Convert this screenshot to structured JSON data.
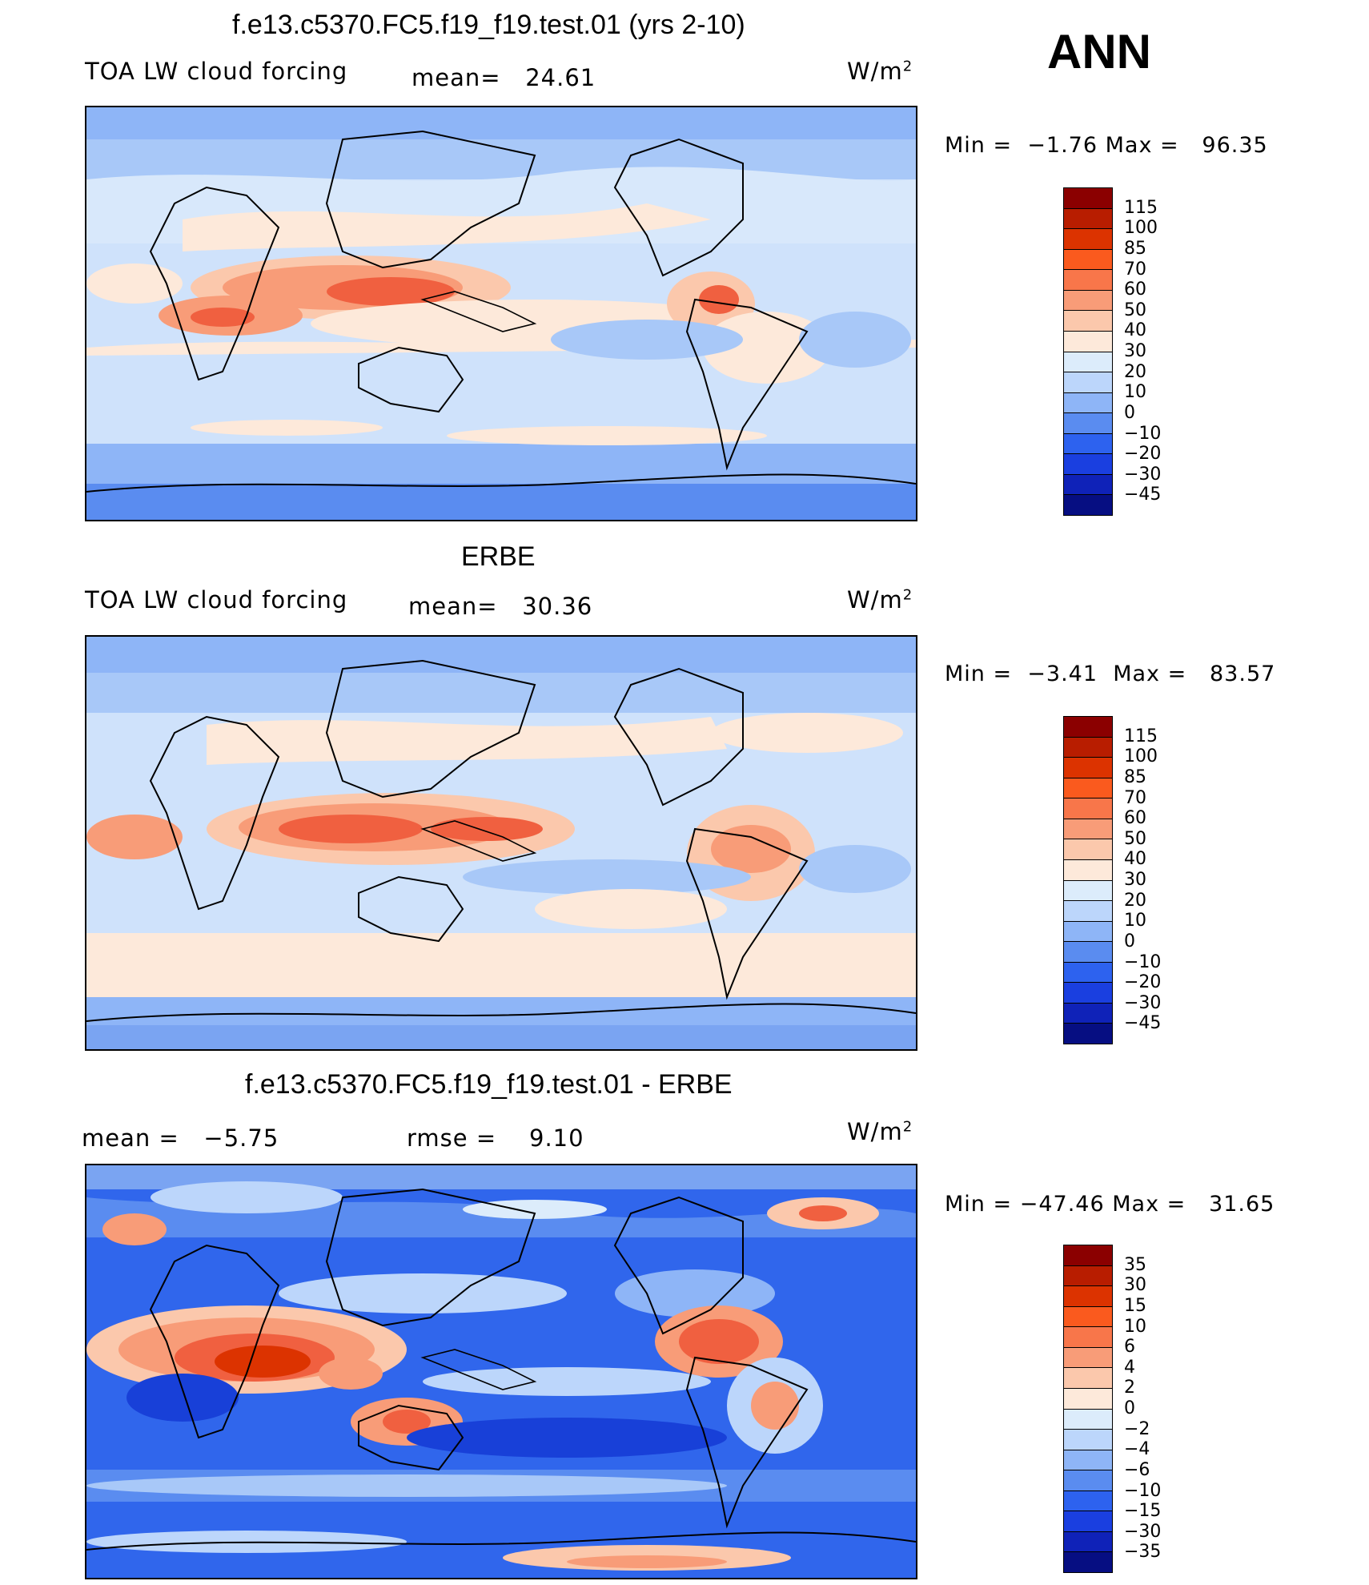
{
  "annotation": "ANN",
  "units_label": "W/m",
  "units_sup": "2",
  "panels": [
    {
      "title": "f.e13.c5370.FC5.f19_f19.test.01 (yrs 2-10)",
      "variable": "TOA LW cloud forcing",
      "stat1_label": "mean=",
      "stat1_value": "24.61",
      "stat2_label": "",
      "stat2_value": "",
      "min_label": "Min =",
      "min_value": "−1.76",
      "max_label": "Max =",
      "max_value": "96.35",
      "levels": [
        "115",
        "100",
        "85",
        "70",
        "60",
        "50",
        "40",
        "30",
        "20",
        "10",
        "0",
        "−10",
        "−20",
        "−30",
        "−45"
      ]
    },
    {
      "title": "ERBE",
      "variable": "TOA LW cloud forcing",
      "stat1_label": "mean=",
      "stat1_value": "30.36",
      "stat2_label": "",
      "stat2_value": "",
      "min_label": "Min =",
      "min_value": "−3.41",
      "max_label": "Max =",
      "max_value": "83.57",
      "levels": [
        "115",
        "100",
        "85",
        "70",
        "60",
        "50",
        "40",
        "30",
        "20",
        "10",
        "0",
        "−10",
        "−20",
        "−30",
        "−45"
      ]
    },
    {
      "title": "f.e13.c5370.FC5.f19_f19.test.01 - ERBE",
      "variable": "",
      "stat1_label": "mean =",
      "stat1_value": "−5.75",
      "stat2_label": "rmse =",
      "stat2_value": "9.10",
      "min_label": "Min =",
      "min_value": "−47.46",
      "max_label": "Max =",
      "max_value": "31.65",
      "levels": [
        "35",
        "30",
        "15",
        "10",
        "6",
        "4",
        "2",
        "0",
        "−2",
        "−4",
        "−6",
        "−10",
        "−15",
        "−30",
        "−35"
      ]
    }
  ],
  "colorbar_colors": [
    "#8b0000",
    "#b81d00",
    "#dc3300",
    "#fa5a1e",
    "#f8764a",
    "#f89c78",
    "#fbc8ac",
    "#fde9da",
    "#dcecfb",
    "#bcd6fb",
    "#8eb5f7",
    "#5a8cf0",
    "#2d62ef",
    "#1a3fe0",
    "#0f22b8",
    "#060e82"
  ],
  "map_colors": {
    "band_polar_n": "#9bbdf6",
    "band_mid": "#d4e6fb",
    "band_tropic": "#dcecfb",
    "band_south": "#fde9da",
    "band_antarctic": "#5a8cf0",
    "warm1": "#fbc8ac",
    "warm2": "#f89c78",
    "warm3": "#f06040",
    "cool1": "#a8c8f8",
    "cool2": "#7aa4f2",
    "diff_base": "#3066ec",
    "diff_deep": "#1840d8"
  }
}
